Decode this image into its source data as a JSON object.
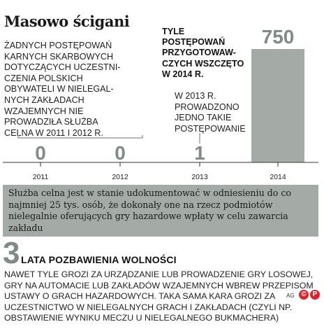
{
  "title": "Masowo ścigani",
  "annotations": {
    "left": "ŻADNYCH POSTĘPOWAŃ\nKARNYCH SKARBOWYCH\nDOTYCZĄCYCH UCZESTNI-\nCZENIA POLSKICH\nOBYWATELI W NIELEGAL-\nNYCH ZAKŁADACH\nWZAJEMNYCH NIE\nPROWADZIŁA SŁUŻBA\nCELNA W 2011 I 2012 R.",
    "mid": "W 2013 R.\nPROWADZONO\nJEDNO TAKIE\nPOSTĘPOWANIE",
    "headline": "TYLE POSTĘPOWAŃ\nPRZYGOTOWAW-\nCZYCH WSZCZĘTO\nW 2014 R."
  },
  "chart_data": {
    "type": "bar",
    "categories": [
      "2011",
      "2012",
      "2013",
      "2014"
    ],
    "values": [
      0,
      0,
      1,
      750
    ],
    "data_labels": [
      "0",
      "0",
      "1",
      "750"
    ],
    "xlabel": "",
    "ylabel": "",
    "ylim": [
      0,
      750
    ],
    "grid": false,
    "colors": {
      "bar": "#a4aba6",
      "value_label": "#7f8b84",
      "axis": "#333333",
      "connector": "#9aa39d"
    }
  },
  "summary": "Służba celna jest w stanie udokumentować w odniesieniu do co najmniej 25 tys. osób, że dokonały one na rzecz podmiotów nielegalnie oferujących gry hazardowe wpłaty w celu zawarcia zakładu",
  "penalty": {
    "number": "3",
    "title": "LATA POZBAWIENIA WOLNOŚCI",
    "text": "NAWET TYLE GROZI ZA URZĄDZANIE LUB PROWADZENIE GRY LOSOWEJ, GRY NA AUTOMACIE LUB ZAKŁADÓW WZAJEMNYCH WBREW PRZEPISOM USTAWY O GRACH HAZARDOWYCH. TAKA SAMA KARA GROZI ZA UCZESTNICTWO W NIELEGALNYCH GRACH I ZAKŁADACH (CZYLI NP. OBSTAWIENIE WYNIKU MECZU U NIELEGALNEGO BUKMACHERA)"
  },
  "credit": "AG",
  "logos": [
    "©",
    "P"
  ],
  "colors": {
    "accent": "#7f8b84",
    "box": "#a4aba6",
    "logo": "#d8262c"
  }
}
